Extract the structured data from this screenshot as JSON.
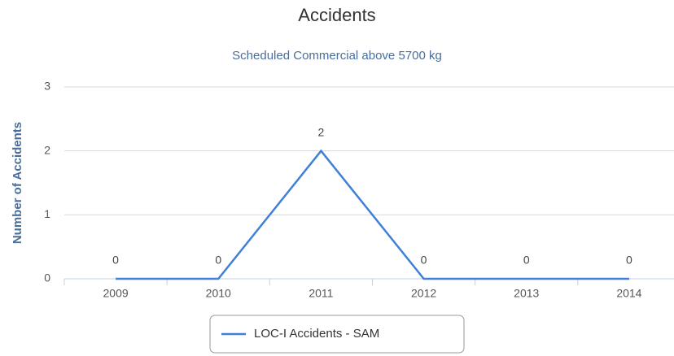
{
  "chart_data": {
    "type": "line",
    "title": "Accidents",
    "subtitle": "Scheduled Commercial above 5700 kg",
    "y_label": "Number of Accidents",
    "categories": [
      "2009",
      "2010",
      "2011",
      "2012",
      "2013",
      "2014"
    ],
    "series": [
      {
        "name": "LOC-I Accidents - SAM",
        "color": "#3f80d8",
        "values": [
          0,
          0,
          2,
          0,
          0,
          0
        ]
      }
    ],
    "ylim": [
      0,
      3
    ],
    "yticks": [
      0,
      1,
      2,
      3
    ],
    "grid": true,
    "legend": "bottom"
  }
}
